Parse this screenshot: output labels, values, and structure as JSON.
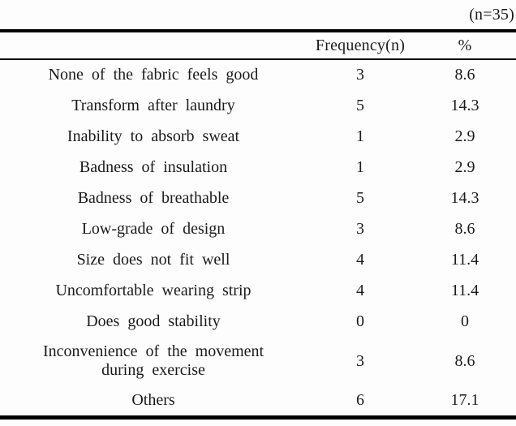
{
  "table": {
    "note": "(n=35)",
    "columns": [
      "",
      "Frequency(n)",
      "%"
    ],
    "rows": [
      {
        "label": "None of the fabric feels good",
        "frequency": "3",
        "percent": "8.6"
      },
      {
        "label": "Transform after laundry",
        "frequency": "5",
        "percent": "14.3"
      },
      {
        "label": "Inability to absorb sweat",
        "frequency": "1",
        "percent": "2.9"
      },
      {
        "label": "Badness of insulation",
        "frequency": "1",
        "percent": "2.9"
      },
      {
        "label": "Badness of breathable",
        "frequency": "5",
        "percent": "14.3"
      },
      {
        "label": "Low-grade of design",
        "frequency": "3",
        "percent": "8.6"
      },
      {
        "label": "Size does not fit well",
        "frequency": "4",
        "percent": "11.4"
      },
      {
        "label": "Uncomfortable wearing strip",
        "frequency": "4",
        "percent": "11.4"
      },
      {
        "label": "Does good stability",
        "frequency": "0",
        "percent": "0"
      },
      {
        "label": "Inconvenience of the movement during exercise",
        "frequency": "3",
        "percent": "8.6"
      },
      {
        "label": "Others",
        "frequency": "6",
        "percent": "17.1"
      }
    ]
  }
}
